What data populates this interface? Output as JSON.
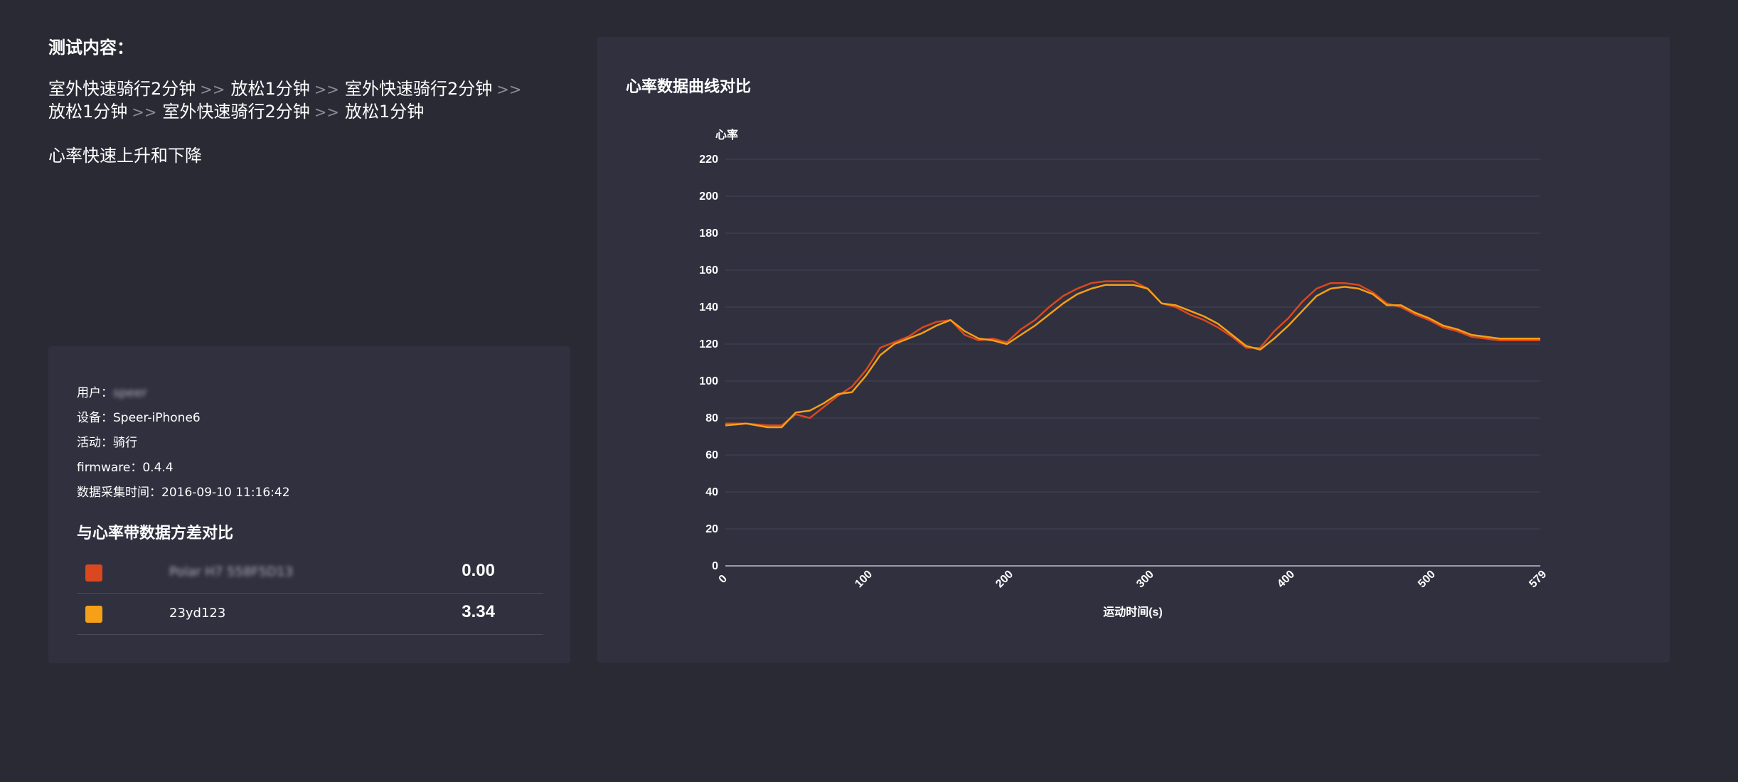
{
  "test": {
    "heading": "测试内容：",
    "steps_line1": [
      "室外快速骑行2分钟",
      "放松1分钟",
      "室外快速骑行2分钟"
    ],
    "steps_line2": [
      "放松1分钟",
      "室外快速骑行2分钟",
      "放松1分钟"
    ],
    "separator": ">>",
    "note": "心率快速上升和下降"
  },
  "info": {
    "user_label": "用户：",
    "user_value": "speer",
    "device_label": "设备：",
    "device_value": "Speer-iPhone6",
    "activity_label": "活动：",
    "activity_value": "骑行",
    "firmware_label": "firmware：",
    "firmware_value": "0.4.4",
    "time_label": "数据采集时间：",
    "time_value": "2016-09-10 11:16:42"
  },
  "compare": {
    "title": "与心率带数据方差对比",
    "rows": [
      {
        "name": "Polar H7 558F5D13",
        "value": "0.00",
        "color": "#d9481f"
      },
      {
        "name": "23yd123",
        "value": "3.34",
        "color": "#f5a016"
      }
    ]
  },
  "chart_data": {
    "type": "line",
    "title": "心率数据曲线对比",
    "ylabel": "心率",
    "xlabel": "运动时间(s)",
    "ylim": [
      0,
      220
    ],
    "xlim": [
      0,
      579
    ],
    "yticks": [
      0,
      20,
      40,
      60,
      80,
      100,
      120,
      140,
      160,
      180,
      200,
      220
    ],
    "xticks": [
      0,
      100,
      200,
      300,
      400,
      500,
      579
    ],
    "grid": true,
    "series": [
      {
        "color": "#d9481f",
        "x": [
          0,
          15,
          30,
          40,
          50,
          60,
          70,
          80,
          90,
          100,
          110,
          120,
          130,
          140,
          150,
          160,
          170,
          180,
          190,
          200,
          210,
          220,
          230,
          240,
          250,
          260,
          270,
          280,
          290,
          300,
          310,
          320,
          330,
          340,
          350,
          360,
          370,
          380,
          390,
          400,
          410,
          420,
          430,
          440,
          450,
          460,
          470,
          480,
          490,
          500,
          510,
          520,
          530,
          540,
          550,
          560,
          570,
          579
        ],
        "y": [
          77,
          77,
          76,
          76,
          82,
          80,
          86,
          92,
          97,
          106,
          118,
          121,
          124,
          129,
          132,
          133,
          125,
          122,
          123,
          121,
          128,
          133,
          140,
          146,
          150,
          153,
          154,
          154,
          154,
          150,
          142,
          140,
          136,
          133,
          129,
          124,
          118,
          118,
          127,
          134,
          143,
          150,
          153,
          153,
          152,
          148,
          142,
          140,
          136,
          133,
          129,
          127,
          124,
          123,
          122,
          122,
          122,
          122
        ]
      },
      {
        "color": "#f5a016",
        "x": [
          0,
          15,
          30,
          40,
          50,
          60,
          70,
          80,
          90,
          100,
          110,
          120,
          130,
          140,
          150,
          160,
          170,
          180,
          190,
          200,
          210,
          220,
          230,
          240,
          250,
          260,
          270,
          280,
          290,
          300,
          310,
          320,
          330,
          340,
          350,
          360,
          370,
          380,
          390,
          400,
          410,
          420,
          430,
          440,
          450,
          460,
          470,
          480,
          490,
          500,
          510,
          520,
          530,
          540,
          550,
          560,
          570,
          579
        ],
        "y": [
          76,
          77,
          75,
          75,
          83,
          84,
          88,
          93,
          94,
          103,
          114,
          120,
          123,
          126,
          130,
          133,
          127,
          123,
          122,
          120,
          125,
          130,
          136,
          142,
          147,
          150,
          152,
          152,
          152,
          150,
          142,
          141,
          138,
          135,
          131,
          125,
          119,
          117,
          123,
          130,
          138,
          146,
          150,
          151,
          150,
          147,
          141,
          141,
          137,
          134,
          130,
          128,
          125,
          124,
          123,
          123,
          123,
          123
        ]
      }
    ]
  }
}
